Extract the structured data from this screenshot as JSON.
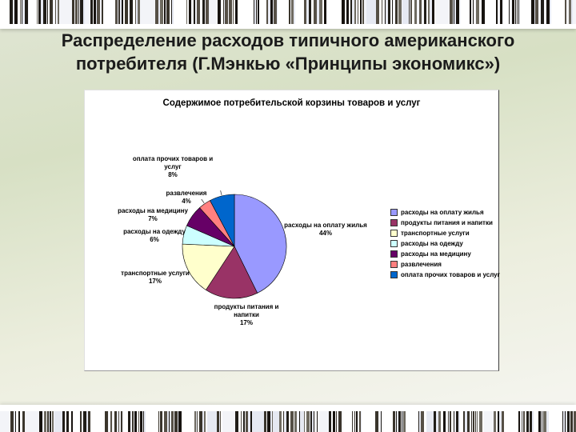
{
  "slide": {
    "title": "Распределение расходов типичного американского потребителя (Г.Мэнкью «Принципы экономикс»)"
  },
  "chart_data": {
    "type": "pie",
    "title": "Содержимое потребительской корзины товаров и услуг",
    "legend_position": "right",
    "labels_shown": true,
    "slices": [
      {
        "label": "расходы на оплату жилья",
        "pct": "44%",
        "value": 44,
        "color": "#9999FF"
      },
      {
        "label": "продукты питания и напитки",
        "pct": "17%",
        "value": 17,
        "color": "#993366"
      },
      {
        "label": "транспортные услуги",
        "pct": "17%",
        "value": 17,
        "color": "#FFFFCC"
      },
      {
        "label": "расходы на одежду",
        "pct": "6%",
        "value": 6,
        "color": "#CCFFFF"
      },
      {
        "label": "расходы на медицину",
        "pct": "7%",
        "value": 7,
        "color": "#660066"
      },
      {
        "label": "развлечения",
        "pct": "4%",
        "value": 4,
        "color": "#FF8080"
      },
      {
        "label": "оплата прочих товаров и услуг",
        "pct": "8%",
        "value": 8,
        "color": "#0066CC"
      }
    ]
  },
  "style": {
    "bg_green_light": "#e0e5d4",
    "bg_green": "#d7e0c4",
    "bg_fade": "#f6f6f2",
    "title_color": "#1b1b1b",
    "chart_bg": "#ffffff",
    "pie_outline": "#000000",
    "barcode_darks": [
      "#17130f",
      "#3a352c",
      "#565046",
      "#201d18",
      "#6e6a60"
    ],
    "barcode_lights": [
      "#ffffff",
      "#f3f4f8",
      "#e6e9f2"
    ]
  }
}
